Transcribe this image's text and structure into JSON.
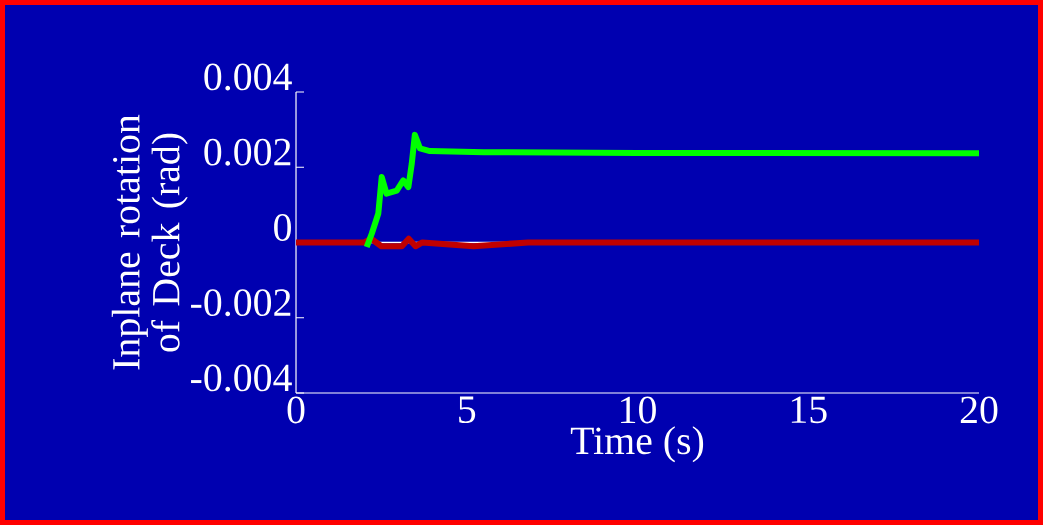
{
  "chart_data": {
    "type": "line",
    "xlabel": "Time (s)",
    "ylabel": "Inplane rotation of Deck (rad)",
    "xlim": [
      0,
      20
    ],
    "xticks": [
      0,
      5,
      10,
      15,
      20
    ],
    "ylim": [
      -0.004,
      0.004
    ],
    "yticks": [
      -0.004,
      -0.002,
      0,
      0.002,
      0.004
    ],
    "ref_lines": [
      {
        "axis": "y",
        "value": 0,
        "color": "#ffffff"
      }
    ],
    "series": [
      {
        "color": "#c00000",
        "x": [
          0,
          2.0,
          2.2,
          2.5,
          2.8,
          3.1,
          3.3,
          3.5,
          3.7,
          5.2,
          6.8,
          20
        ],
        "values": [
          0,
          0,
          0.0001,
          -0.0001,
          -0.0001,
          -0.0001,
          0.0001,
          -0.0001,
          0,
          -0.0001,
          0,
          0
        ]
      },
      {
        "color": "#00ff00",
        "x": [
          2.07,
          2.22,
          2.41,
          2.51,
          2.65,
          2.95,
          3.14,
          3.29,
          3.39,
          3.48,
          3.63,
          3.92,
          5.5,
          10,
          20
        ],
        "values": [
          -0.00012,
          0.00024,
          0.00077,
          0.00174,
          0.0013,
          0.00138,
          0.00165,
          0.00147,
          0.0021,
          0.00286,
          0.0025,
          0.00243,
          0.0024,
          0.00238,
          0.00237
        ]
      }
    ]
  }
}
